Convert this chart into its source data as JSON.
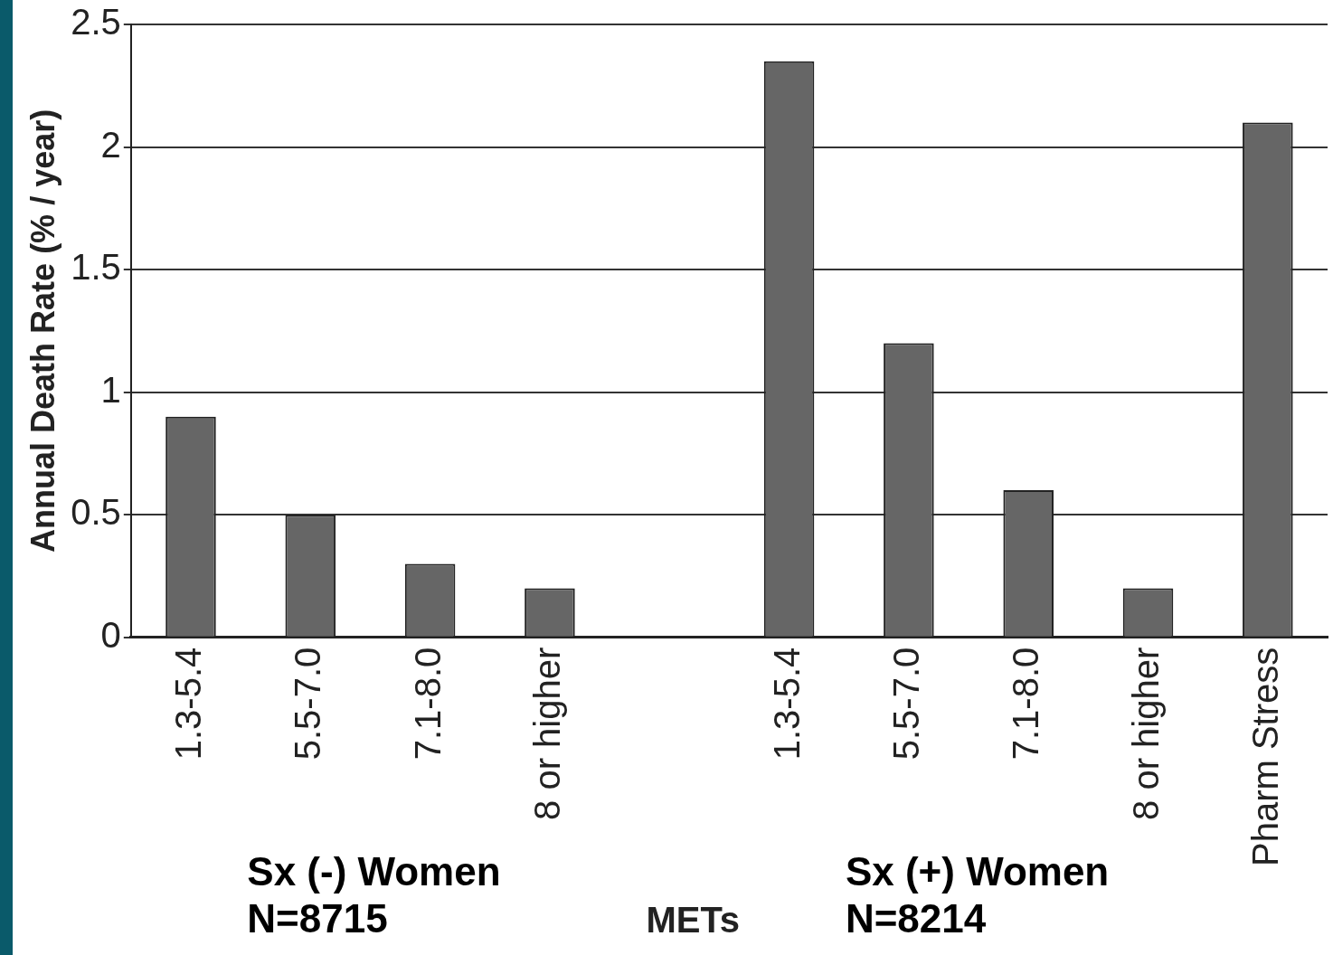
{
  "chart_data": {
    "type": "bar",
    "ylabel": "Annual Death Rate (% / year)",
    "xlabel": "METs",
    "categories": [
      "1.3-5.4",
      "5.5-7.0",
      "7.1-8.0",
      "8 or higher",
      null,
      "1.3-5.4",
      "5.5-7.0",
      "7.1-8.0",
      "8 or higher",
      "Pharm Stress"
    ],
    "values": [
      0.9,
      0.5,
      0.3,
      0.2,
      null,
      2.35,
      1.2,
      0.6,
      0.2,
      2.1
    ],
    "color": "#666666",
    "ylim": [
      0,
      2.5
    ],
    "yticks": [
      0,
      0.5,
      1,
      1.5,
      2,
      2.5
    ],
    "grid": "y",
    "legend": false,
    "annotations": [
      "Sx (-) Women\nN=8715",
      "Sx (+) Women\nN=8214"
    ]
  }
}
